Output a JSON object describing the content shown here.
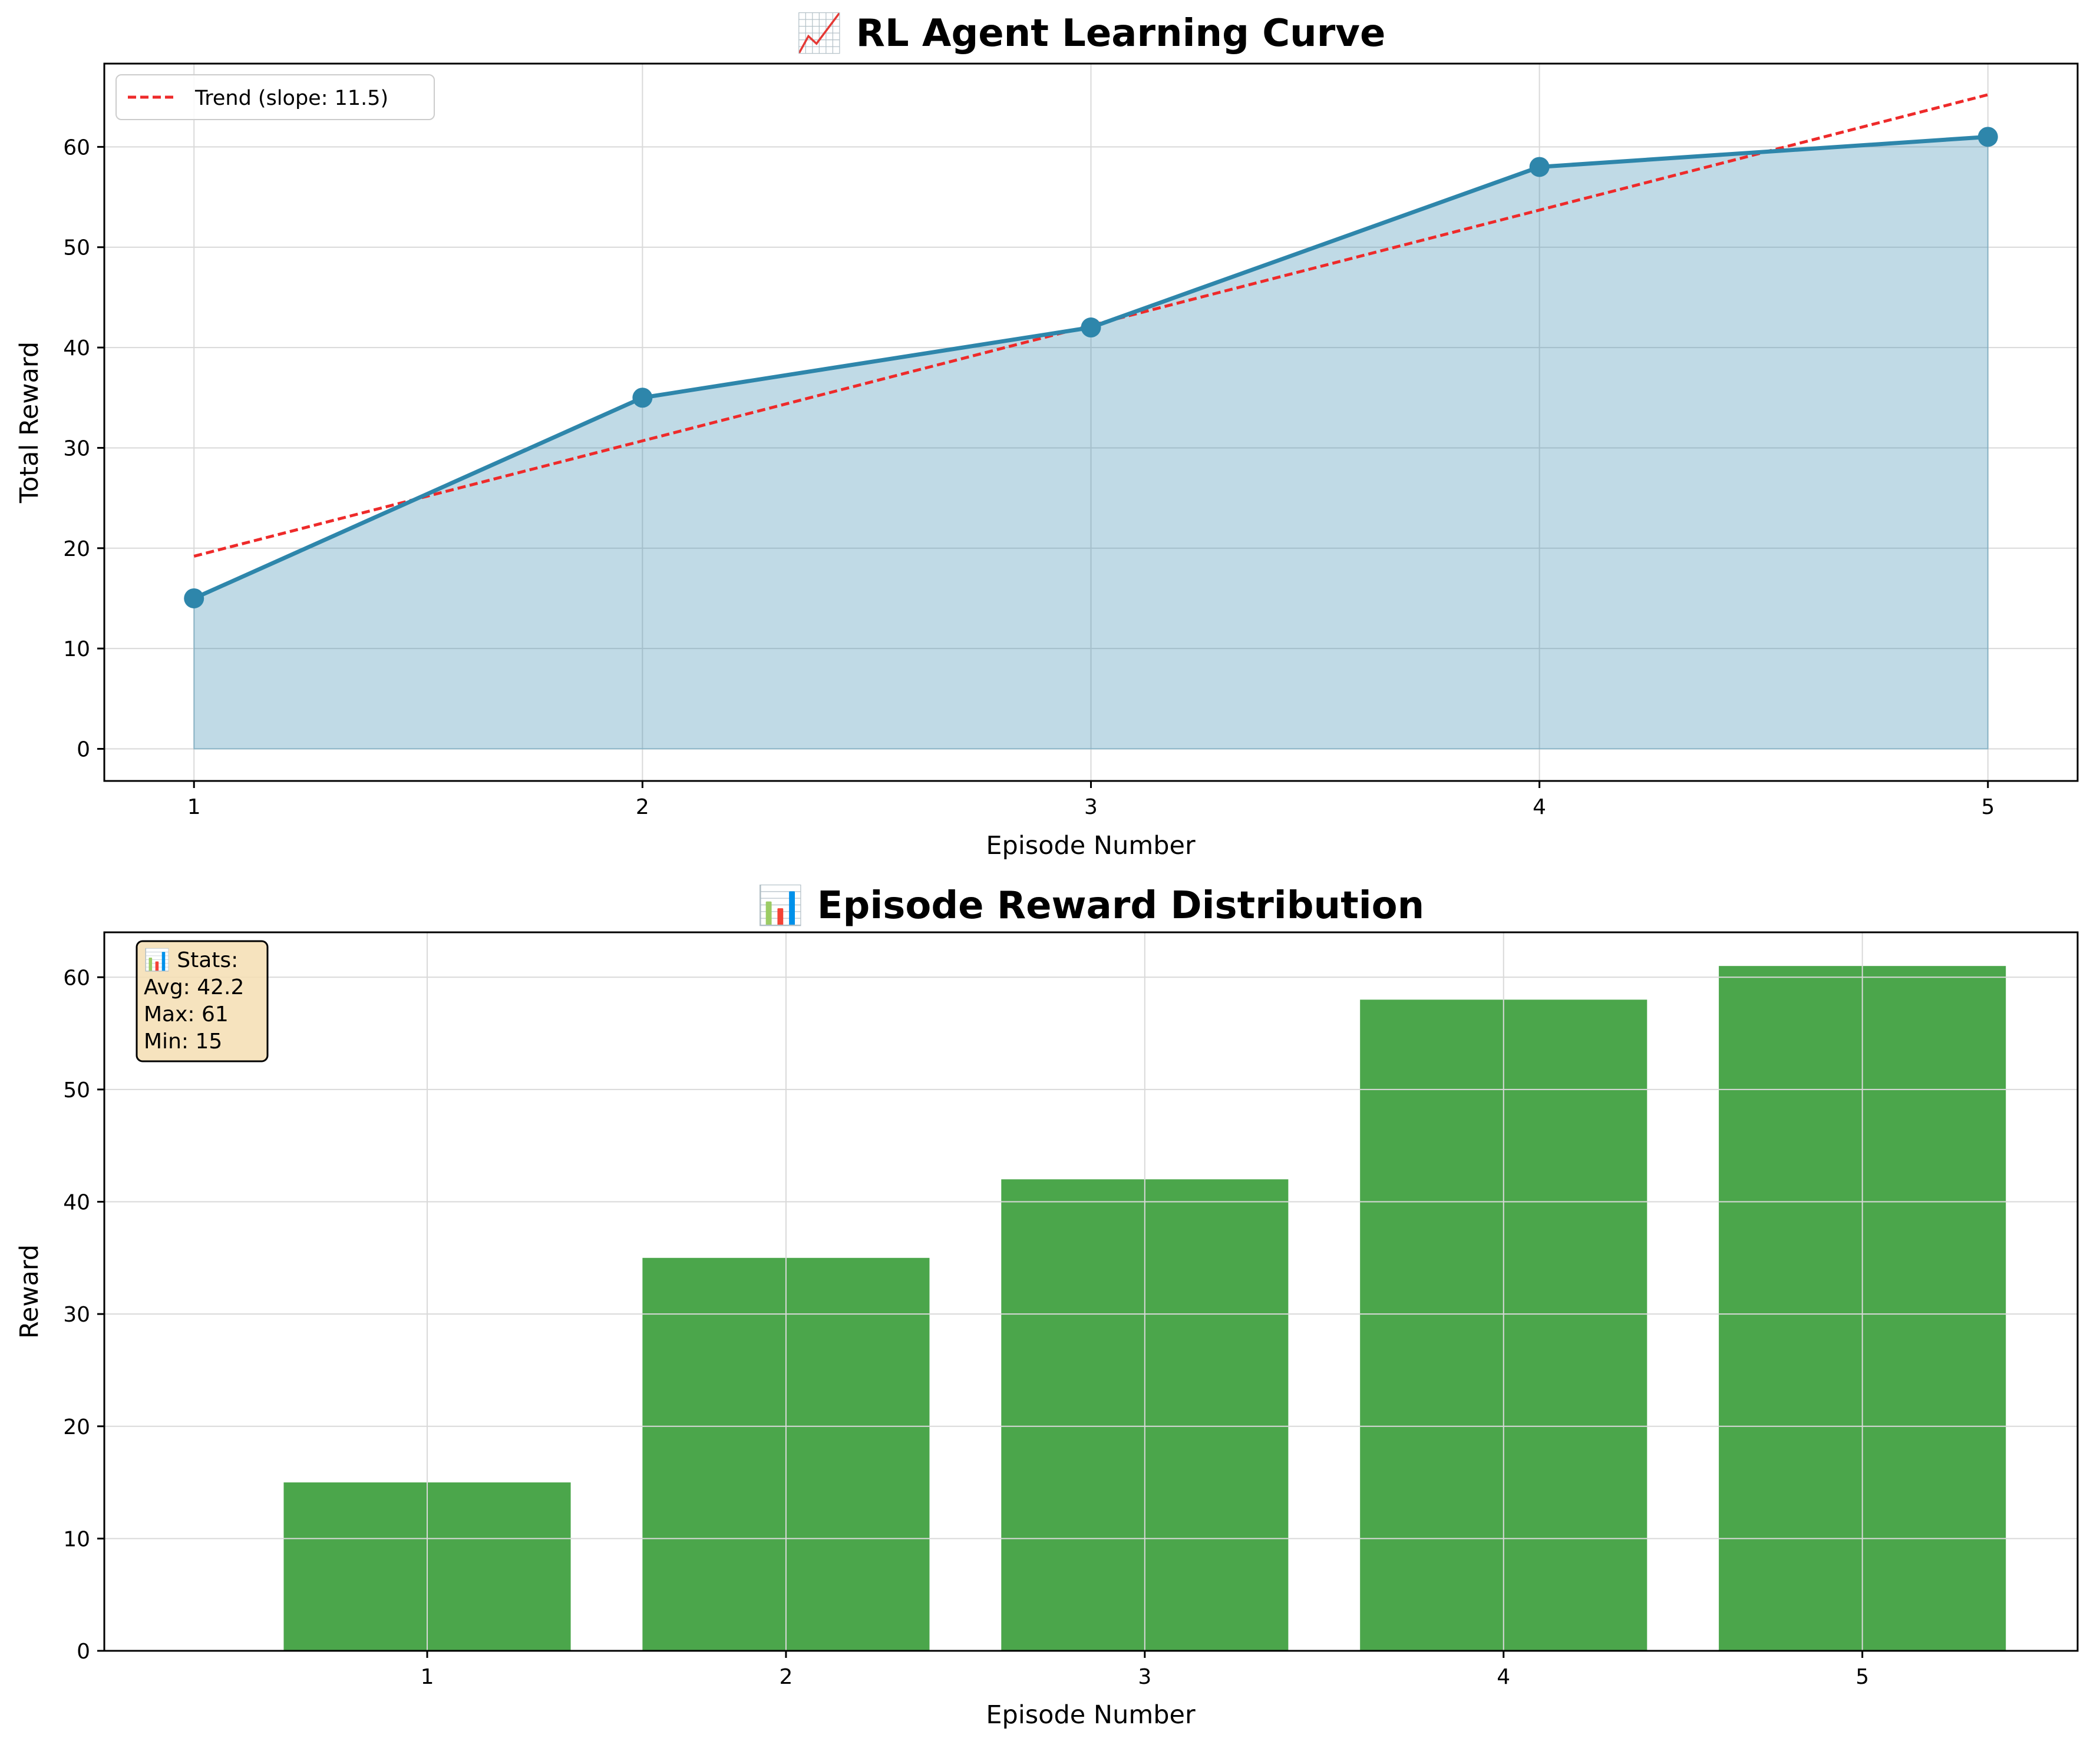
{
  "colors": {
    "line": "#2e86ab",
    "fill": "#2e86ab",
    "trend": "#ee2a2a",
    "bar": "#4ba64b",
    "stats_bg": "#f5deb3"
  },
  "chart_data": [
    {
      "type": "line",
      "title": "📈 RL Agent Learning Curve",
      "xlabel": "Episode Number",
      "ylabel": "Total Reward",
      "x": [
        1,
        2,
        3,
        4,
        5
      ],
      "values": [
        15,
        35,
        42,
        58,
        61
      ],
      "xlim": [
        0.8,
        5.2
      ],
      "ylim": [
        -3.2,
        68.3
      ],
      "xticks": [
        1,
        2,
        3,
        4,
        5
      ],
      "yticks": [
        0,
        10,
        20,
        30,
        40,
        50,
        60
      ],
      "area_fill": true,
      "grid": true,
      "trend": {
        "name": "Trend (slope: 11.5)",
        "start": [
          1,
          19.2
        ],
        "end": [
          5,
          65.2
        ],
        "style": "dashed"
      },
      "legend": "top-left"
    },
    {
      "type": "bar",
      "title": "📊 Episode Reward Distribution",
      "xlabel": "Episode Number",
      "ylabel": "Reward",
      "categories": [
        "1",
        "2",
        "3",
        "4",
        "5"
      ],
      "values": [
        15,
        35,
        42,
        58,
        61
      ],
      "ylim": [
        0,
        64
      ],
      "yticks": [
        0,
        10,
        20,
        30,
        40,
        50,
        60
      ],
      "grid": true,
      "stats_box": {
        "lines": [
          "📊 Stats:",
          "Avg: 42.2",
          "Max: 61",
          "Min: 15"
        ],
        "position": "top-left"
      }
    }
  ]
}
